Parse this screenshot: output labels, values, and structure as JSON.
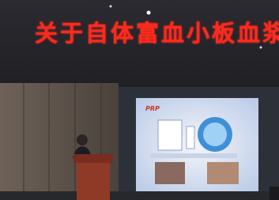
{
  "banner": {
    "text": "关于自体富血小板血浆"
  },
  "slide": {
    "title": "PRP"
  }
}
